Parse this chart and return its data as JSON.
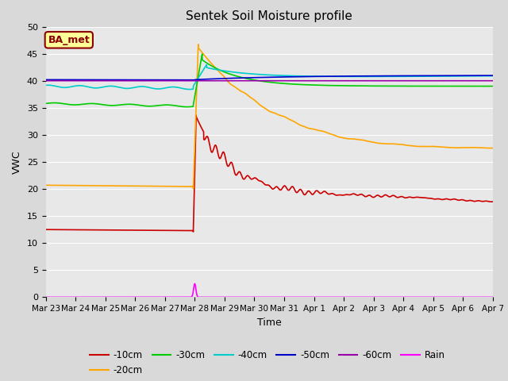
{
  "title": "Sentek Soil Moisture profile",
  "xlabel": "Time",
  "ylabel": "VWC",
  "ylim": [
    0,
    50
  ],
  "background_color": "#d9d9d9",
  "plot_bg_color": "#e8e8e8",
  "annotation_text": "BA_met",
  "annotation_color": "#8b0000",
  "annotation_bg": "#ffff99",
  "annotation_border": "#8b0000",
  "colors": {
    "10cm": "#cc0000",
    "20cm": "#ffa500",
    "30cm": "#00cc00",
    "40cm": "#00cccc",
    "50cm": "#0000cc",
    "60cm": "#9900aa",
    "rain": "#ff00ff"
  },
  "tick_labels": [
    "Mar 23",
    "Mar 24",
    "Mar 25",
    "Mar 26",
    "Mar 27",
    "Mar 28",
    "Mar 29",
    "Mar 30",
    "Mar 31",
    "Apr 1",
    "Apr 2",
    "Apr 3",
    "Apr 4",
    "Apr 5",
    "Apr 6",
    "Apr 7"
  ]
}
